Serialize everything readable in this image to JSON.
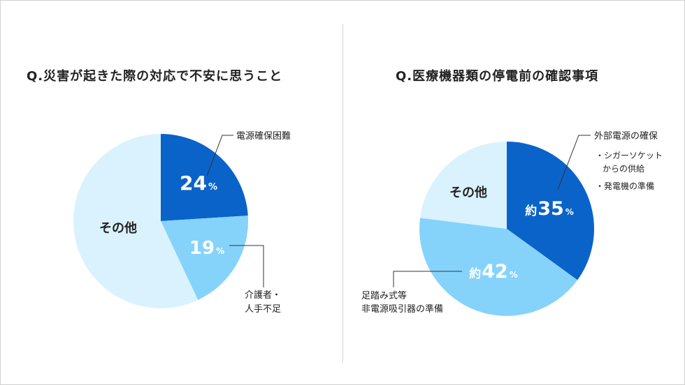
{
  "chart_data": [
    {
      "type": "pie",
      "title": "Q.災害が起きた際の対応で不安に思うこと",
      "slices": [
        {
          "label": "電源確保困難",
          "value": 24,
          "value_text": "24",
          "unit": "%",
          "color": "#0a63c9"
        },
        {
          "label_lines": [
            "介護者・",
            "人手不足"
          ],
          "value": 19,
          "value_text": "19",
          "unit": "%",
          "color": "#85d3fb"
        },
        {
          "label": "その他",
          "value": 57,
          "color": "#daf2fd"
        }
      ]
    },
    {
      "type": "pie",
      "title": "Q.医療機器類の停電前の確認事項",
      "slices": [
        {
          "label": "外部電源の確保",
          "sublabels": [
            [
              "・シガーソケット",
              "からの供給"
            ],
            [
              "・発電機の準備"
            ]
          ],
          "value": 35,
          "prefix": "約",
          "value_text": "35",
          "unit": "%",
          "color": "#0a63c9"
        },
        {
          "label_lines": [
            "足踏み式等",
            "非電源吸引器の準備"
          ],
          "value": 42,
          "prefix": "約",
          "value_text": "42",
          "unit": "%",
          "color": "#85d3fb"
        },
        {
          "label": "その他",
          "value": 23,
          "color": "#daf2fd"
        }
      ]
    }
  ]
}
